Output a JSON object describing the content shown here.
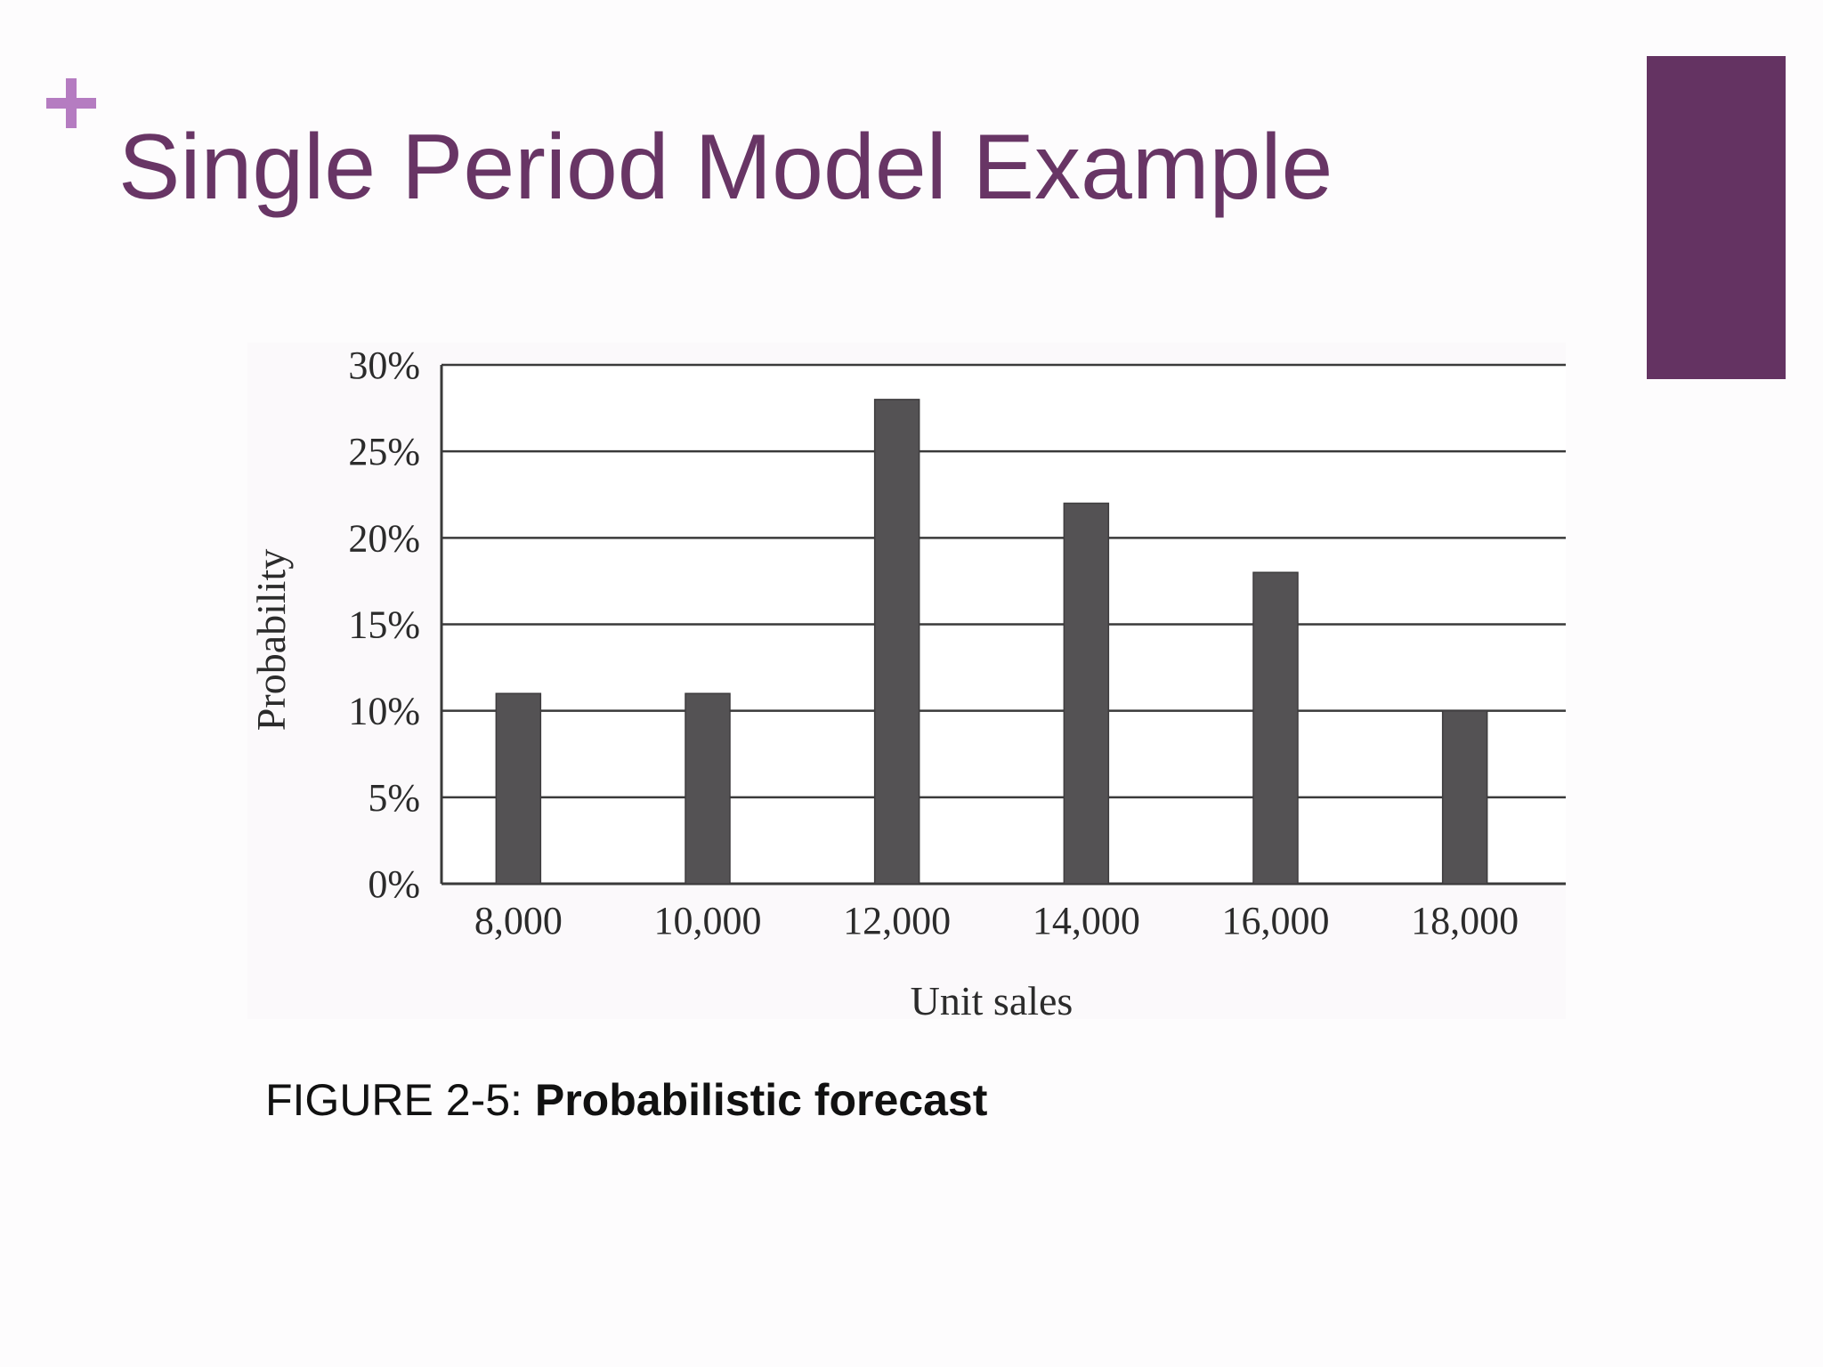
{
  "slide": {
    "title": "Single Period Model Example",
    "plus_icon": "plus-icon",
    "caption_label": "FIGURE 2-5: ",
    "caption_title": "Probabilistic forecast",
    "colors": {
      "title": "#683565",
      "plus": "#b57cc1",
      "accent_bar": "#643362",
      "bars": "#545254",
      "grid": "#3a3a3a"
    }
  },
  "chart_data": {
    "type": "bar",
    "categories": [
      "8,000",
      "10,000",
      "12,000",
      "14,000",
      "16,000",
      "18,000"
    ],
    "values": [
      11,
      11,
      28,
      22,
      18,
      10
    ],
    "yticks": [
      "0%",
      "5%",
      "10%",
      "15%",
      "20%",
      "25%",
      "30%"
    ],
    "ylim": [
      0,
      30
    ],
    "xlabel": "Unit sales",
    "ylabel": "Probability",
    "grid": true,
    "legend": "none"
  }
}
